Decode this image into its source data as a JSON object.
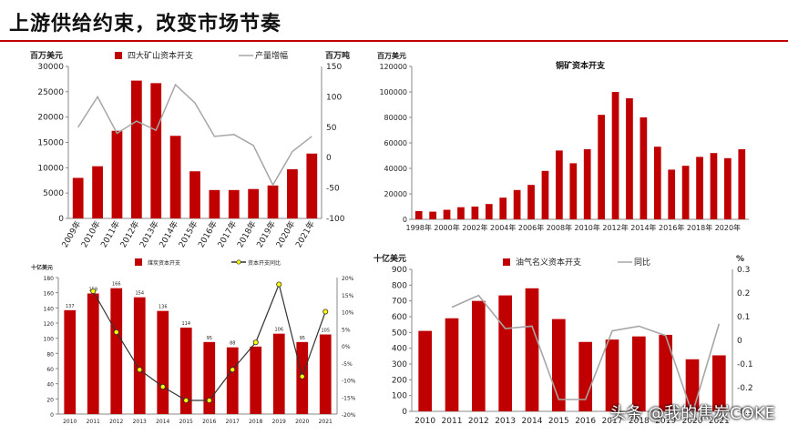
{
  "page": {
    "title": "上游供给约束，改变市场节奏",
    "watermark": "头条 @我的焦炭COKE"
  },
  "colors": {
    "bar": "#c00000",
    "line": "#a6a6a6",
    "line_dark": "#333333",
    "marker": "#ffff00"
  },
  "chart_data": [
    {
      "type": "bar",
      "ylabel": "百万美元",
      "y2label": "百万吨",
      "categories": [
        "2009年",
        "2010年",
        "2011年",
        "2012年",
        "2013年",
        "2014年",
        "2015年",
        "2016年",
        "2017年",
        "2018年",
        "2019年",
        "2020年",
        "2021年"
      ],
      "series": [
        {
          "name": "四大矿山资本开支",
          "type": "bar",
          "values": [
            8000,
            10300,
            17300,
            27200,
            26700,
            16300,
            9300,
            5600,
            5600,
            5800,
            6500,
            9700,
            12800
          ]
        },
        {
          "name": "产量增幅",
          "type": "line",
          "axis": "right",
          "values": [
            50,
            100,
            40,
            60,
            45,
            120,
            90,
            35,
            38,
            20,
            -45,
            10,
            35
          ]
        }
      ],
      "ylim": [
        0,
        30000
      ],
      "yticks": [
        0,
        5000,
        10000,
        15000,
        20000,
        25000,
        30000
      ],
      "y2lim": [
        -100,
        150
      ],
      "y2ticks": [
        -100,
        -50,
        0,
        50,
        100,
        150
      ]
    },
    {
      "type": "bar",
      "title": "铜矿资本开支",
      "ylabel": "百万美元",
      "categories": [
        "1998年",
        "1999年",
        "2000年",
        "2001年",
        "2002年",
        "2003年",
        "2004年",
        "2005年",
        "2006年",
        "2007年",
        "2008年",
        "2009年",
        "2010年",
        "2011年",
        "2012年",
        "2013年",
        "2014年",
        "2015年",
        "2016年",
        "2017年",
        "2018年",
        "2019年",
        "2020年",
        "2021年"
      ],
      "xtick_labels": [
        "1998年",
        "",
        "2000年",
        "",
        "2002年",
        "",
        "2004年",
        "",
        "2006年",
        "",
        "2008年",
        "",
        "2010年",
        "",
        "2012年",
        "",
        "2014年",
        "",
        "2016年",
        "",
        "2018年",
        "",
        "2020年",
        ""
      ],
      "values": [
        6500,
        6000,
        7500,
        9500,
        10000,
        12000,
        17000,
        23000,
        27000,
        38000,
        54000,
        44000,
        55000,
        82000,
        100000,
        95000,
        80000,
        57000,
        39000,
        42000,
        49000,
        52000,
        48000,
        55000
      ],
      "ylim": [
        0,
        120000
      ],
      "yticks": [
        0,
        20000,
        40000,
        60000,
        80000,
        100000,
        120000
      ]
    },
    {
      "type": "bar",
      "ylabel": "十亿美元",
      "categories": [
        "2010",
        "2011",
        "2012",
        "2013",
        "2014",
        "2015",
        "2016",
        "2017",
        "2018",
        "2019",
        "2020",
        "2021"
      ],
      "series": [
        {
          "name": "煤炭资本开支",
          "type": "bar",
          "values": [
            137,
            159,
            166,
            154,
            136,
            114,
            95,
            88,
            89,
            106,
            95,
            105
          ],
          "labels": [
            "137",
            "159",
            "166",
            "154",
            "136",
            "114",
            "95",
            "88",
            "89",
            "106",
            "95",
            "105"
          ]
        },
        {
          "name": "资本开支同比",
          "type": "line",
          "axis": "right",
          "values": [
            null,
            16,
            4,
            -7,
            -12,
            -16,
            -16,
            -7,
            1,
            18,
            -9,
            10
          ]
        }
      ],
      "ylim": [
        0,
        180
      ],
      "yticks": [
        0,
        20,
        40,
        60,
        80,
        100,
        120,
        140,
        160,
        180
      ],
      "y2lim": [
        -20,
        20
      ],
      "y2ticks": [
        "-20%",
        "-15%",
        "-10%",
        "-5%",
        "0%",
        "5%",
        "10%",
        "15%",
        "20%"
      ]
    },
    {
      "type": "bar",
      "ylabel": "十亿美元",
      "y2label": "%",
      "categories": [
        "2010",
        "2011",
        "2012",
        "2013",
        "2014",
        "2015",
        "2016",
        "2017",
        "2018",
        "2019",
        "2020",
        "2021"
      ],
      "series": [
        {
          "name": "油气名义资本开支",
          "type": "bar",
          "values": [
            510,
            590,
            700,
            735,
            780,
            585,
            440,
            455,
            475,
            485,
            330,
            355
          ]
        },
        {
          "name": "同比",
          "type": "line",
          "axis": "right",
          "values": [
            null,
            0.14,
            0.19,
            0.05,
            0.06,
            -0.25,
            -0.25,
            0.04,
            0.06,
            0.02,
            -0.31,
            0.07
          ]
        }
      ],
      "ylim": [
        0,
        900
      ],
      "yticks": [
        0,
        100,
        200,
        300,
        400,
        500,
        600,
        700,
        800,
        900
      ],
      "y2lim": [
        -0.3,
        0.3
      ],
      "y2ticks": [
        "-0.3",
        "-0.2",
        "-0.1",
        "0",
        "0.1",
        "0.2",
        "0.3"
      ]
    }
  ]
}
